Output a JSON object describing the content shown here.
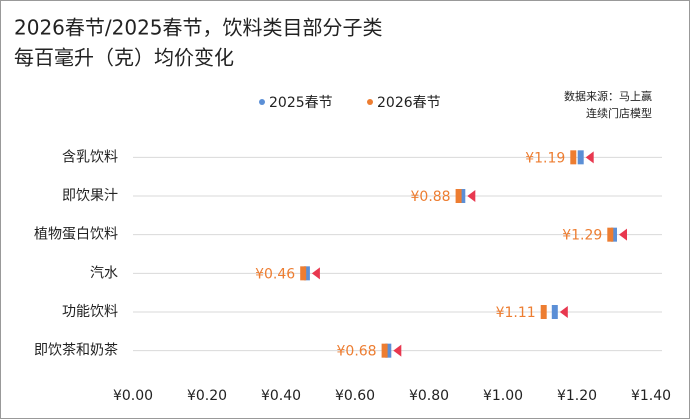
{
  "chart_data": {
    "type": "dot",
    "title": "2026春节/2025春节，饮料类目部分子类",
    "subtitle": "每百毫升（克）均价变化",
    "source": [
      "数据来源：马上赢",
      "连续门店模型"
    ],
    "categories": [
      "含乳饮料",
      "即饮果汁",
      "植物蛋白饮料",
      "汽水",
      "功能饮料",
      "即饮茶和奶茶"
    ],
    "series": [
      {
        "name": "2025春节",
        "color": "#5b8fd6",
        "values": [
          1.21,
          0.89,
          1.3,
          0.47,
          1.14,
          0.69
        ]
      },
      {
        "name": "2026春节",
        "color": "#ed7d31",
        "values": [
          1.19,
          0.88,
          1.29,
          0.46,
          1.11,
          0.68
        ],
        "value_labels": [
          "¥1.19",
          "¥0.88",
          "¥1.29",
          "¥0.46",
          "¥1.11",
          "¥0.68"
        ]
      }
    ],
    "change_color": "#e8384f",
    "xlim": [
      0,
      1.4
    ],
    "xticks": [
      {
        "value": 0,
        "label": "¥0.00"
      },
      {
        "value": 0.2,
        "label": "¥0.20"
      },
      {
        "value": 0.4,
        "label": "¥0.40"
      },
      {
        "value": 0.6,
        "label": "¥0.60"
      },
      {
        "value": 0.8,
        "label": "¥0.80"
      },
      {
        "value": 1.0,
        "label": "¥1.00"
      },
      {
        "value": 1.2,
        "label": "¥1.20"
      },
      {
        "value": 1.4,
        "label": "¥1.40"
      }
    ],
    "grid": true,
    "legend": "top"
  }
}
